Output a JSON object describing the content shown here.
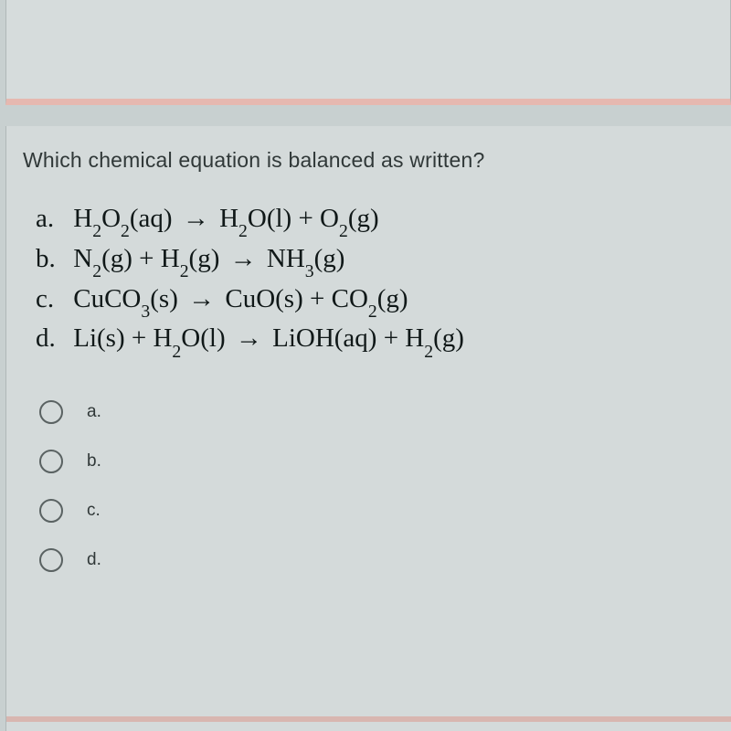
{
  "question": {
    "prompt": "Which chemical equation is balanced as written?",
    "equations": {
      "a": {
        "label": "a.",
        "lhs": "H<sub>2</sub>O<sub>2</sub>(aq)",
        "rhs": "H<sub>2</sub>O(l) + O<sub>2</sub>(g)"
      },
      "b": {
        "label": "b.",
        "lhs": "N<sub>2</sub>(g) + H<sub>2</sub>(g)",
        "rhs": "NH<sub>3</sub>(g)"
      },
      "c": {
        "label": "c.",
        "lhs": "CuCO<sub>3</sub>(s)",
        "rhs": "CuO(s) + CO<sub>2</sub>(g)"
      },
      "d": {
        "label": "d.",
        "lhs": "Li(s) + H<sub>2</sub>O(l)",
        "rhs": "LiOH(aq) + H<sub>2</sub>(g)"
      }
    },
    "arrow": "→",
    "options": [
      {
        "label": "a."
      },
      {
        "label": "b."
      },
      {
        "label": "c."
      },
      {
        "label": "d."
      }
    ]
  },
  "style": {
    "page_bg": "#c8d0d0",
    "card_bg": "#d4dada",
    "divider_color": "#e6b8b0",
    "text_color": "#303838",
    "eq_color": "#101818",
    "radio_border": "#5a6262",
    "question_fontsize": 23,
    "equation_fontsize": 29,
    "option_fontsize": 19
  }
}
